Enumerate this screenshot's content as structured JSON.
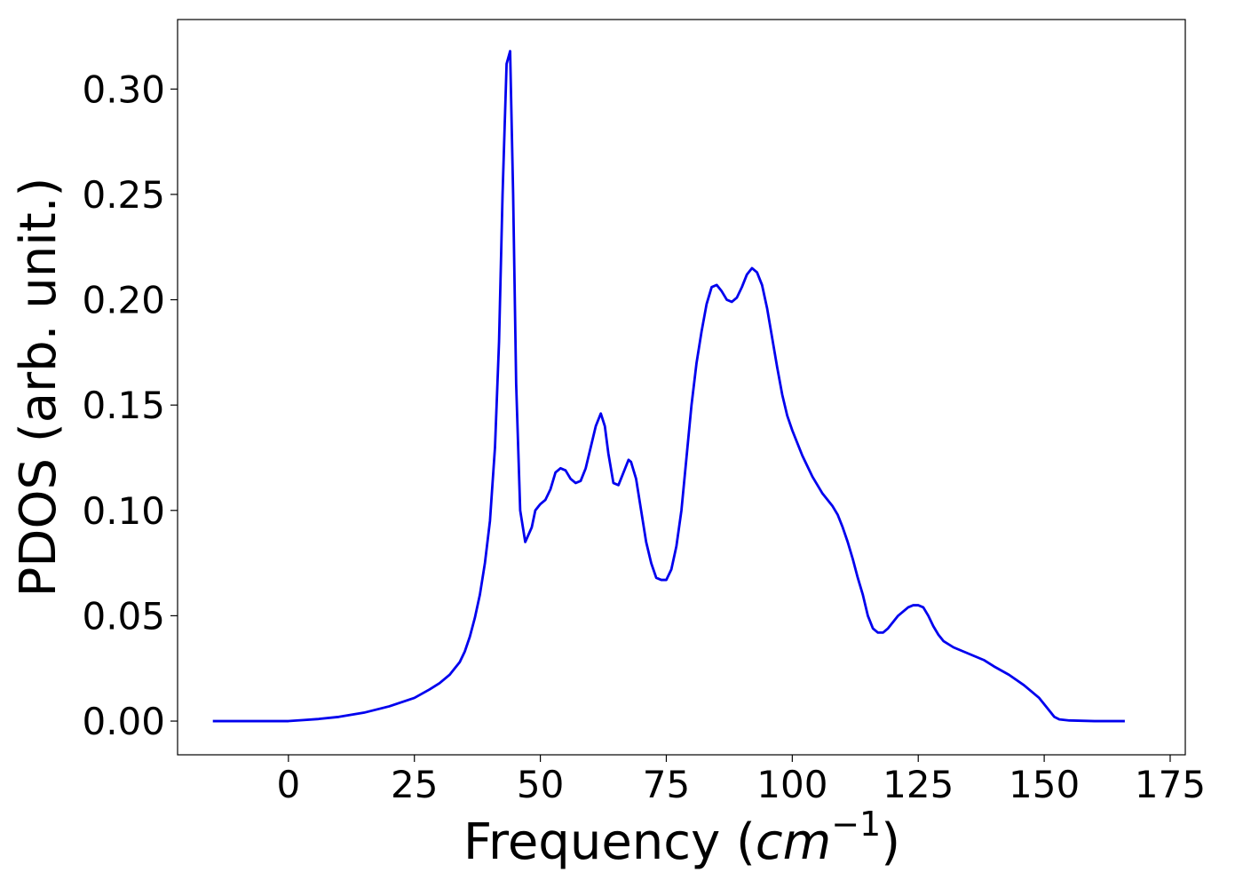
{
  "chart_data": {
    "type": "line",
    "title": "",
    "xlabel": "Frequency",
    "xlabel_unit": "cm",
    "xlabel_unit_exponent": "−1",
    "ylabel": "PDOS (arb. unit.)",
    "xlim": [
      -22,
      178
    ],
    "ylim": [
      -0.016,
      0.333
    ],
    "xticks": [
      0,
      25,
      50,
      75,
      100,
      125,
      150,
      175
    ],
    "xtick_labels": [
      "0",
      "25",
      "50",
      "75",
      "100",
      "125",
      "150",
      "175"
    ],
    "yticks": [
      0.0,
      0.05,
      0.1,
      0.15,
      0.2,
      0.25,
      0.3
    ],
    "ytick_labels": [
      "0.00",
      "0.05",
      "0.10",
      "0.15",
      "0.20",
      "0.25",
      "0.30"
    ],
    "grid": false,
    "legend": false,
    "line_color": "#0000ee",
    "series": [
      {
        "x": [
          -15,
          0,
          3,
          6,
          10,
          15,
          20,
          25,
          28,
          30,
          32,
          34,
          35,
          36,
          37,
          38,
          39,
          40,
          41,
          41.8,
          42.5,
          43.3,
          44,
          44.6,
          45.2,
          46,
          47,
          48.3,
          49,
          50,
          51,
          52,
          53,
          54,
          55,
          56,
          57,
          58,
          59,
          60,
          61,
          62,
          62.8,
          63.5,
          64.5,
          65.5,
          66.5,
          67.5,
          68,
          69,
          70,
          71,
          72,
          73,
          74,
          75,
          76,
          77,
          78,
          79,
          80,
          81,
          82,
          83,
          84,
          85,
          86,
          87,
          88,
          89,
          90,
          91,
          92,
          93,
          94,
          95,
          96,
          97,
          98,
          99,
          100,
          101,
          102,
          103,
          104,
          105,
          106,
          107,
          108,
          109,
          110,
          111,
          112,
          113,
          114,
          115,
          116,
          117,
          118,
          119,
          120,
          121,
          122,
          123,
          124,
          125,
          126,
          127,
          128,
          129,
          130,
          132,
          134,
          136,
          138,
          140,
          143,
          146,
          149,
          151,
          152,
          153,
          155,
          160,
          166
        ],
        "y": [
          0,
          0,
          0.0005,
          0.001,
          0.002,
          0.004,
          0.007,
          0.011,
          0.015,
          0.018,
          0.022,
          0.028,
          0.033,
          0.04,
          0.049,
          0.06,
          0.075,
          0.095,
          0.13,
          0.18,
          0.25,
          0.312,
          0.318,
          0.25,
          0.16,
          0.1,
          0.085,
          0.092,
          0.1,
          0.103,
          0.105,
          0.11,
          0.118,
          0.12,
          0.119,
          0.115,
          0.113,
          0.114,
          0.12,
          0.13,
          0.14,
          0.146,
          0.14,
          0.127,
          0.113,
          0.112,
          0.118,
          0.124,
          0.123,
          0.115,
          0.1,
          0.085,
          0.075,
          0.068,
          0.067,
          0.067,
          0.072,
          0.083,
          0.1,
          0.125,
          0.15,
          0.17,
          0.185,
          0.198,
          0.206,
          0.207,
          0.204,
          0.2,
          0.199,
          0.201,
          0.206,
          0.212,
          0.215,
          0.213,
          0.207,
          0.196,
          0.182,
          0.168,
          0.155,
          0.145,
          0.138,
          0.132,
          0.126,
          0.121,
          0.116,
          0.112,
          0.108,
          0.105,
          0.102,
          0.098,
          0.092,
          0.085,
          0.077,
          0.068,
          0.06,
          0.05,
          0.044,
          0.042,
          0.042,
          0.044,
          0.047,
          0.05,
          0.052,
          0.054,
          0.055,
          0.055,
          0.054,
          0.05,
          0.045,
          0.041,
          0.038,
          0.035,
          0.033,
          0.031,
          0.029,
          0.026,
          0.022,
          0.017,
          0.011,
          0.005,
          0.002,
          0.0008,
          0.0003,
          0,
          0
        ]
      }
    ]
  }
}
